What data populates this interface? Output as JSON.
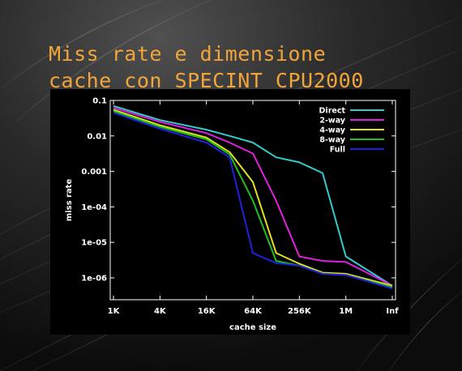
{
  "slide": {
    "title_line1": "Miss rate e dimensione",
    "title_line2": "cache con SPECINT CPU2000",
    "title_color": "#f2a53a",
    "background_color": "#000000"
  },
  "chart_data": {
    "type": "line",
    "xlabel": "cache size",
    "ylabel": "miss rate",
    "x_ticks": [
      "1K",
      "4K",
      "16K",
      "64K",
      "256K",
      "1M",
      "Inf"
    ],
    "y_ticks": [
      "0.1",
      "0.01",
      "0.001",
      "1e-04",
      "1e-05",
      "1e-06"
    ],
    "y_scale": "log",
    "ylim": [
      1e-06,
      0.1
    ],
    "grid": false,
    "legend_position": "top-right",
    "series": [
      {
        "name": "Direct",
        "color": "#33cccc",
        "x": [
          "1K",
          "4K",
          "16K",
          "32K",
          "64K",
          "128K",
          "256K",
          "512K",
          "1M",
          "Inf"
        ],
        "y": [
          0.07,
          0.028,
          0.015,
          0.01,
          0.0065,
          0.0025,
          0.0018,
          0.0009,
          4e-06,
          6e-07
        ]
      },
      {
        "name": "2-way",
        "color": "#e020e0",
        "x": [
          "1K",
          "4K",
          "16K",
          "32K",
          "64K",
          "128K",
          "256K",
          "512K",
          "1M",
          "Inf"
        ],
        "y": [
          0.062,
          0.025,
          0.012,
          0.0065,
          0.0032,
          0.00015,
          4e-06,
          3e-06,
          2.8e-06,
          6e-07
        ]
      },
      {
        "name": "4-way",
        "color": "#e0e020",
        "x": [
          "1K",
          "4K",
          "16K",
          "32K",
          "64K",
          "128K",
          "256K",
          "512K",
          "1M",
          "Inf"
        ],
        "y": [
          0.055,
          0.02,
          0.009,
          0.0035,
          0.0005,
          5e-06,
          2.5e-06,
          1.4e-06,
          1.3e-06,
          6e-07
        ]
      },
      {
        "name": "8-way",
        "color": "#20c020",
        "x": [
          "1K",
          "4K",
          "16K",
          "32K",
          "64K",
          "128K",
          "256K",
          "512K",
          "1M",
          "Inf"
        ],
        "y": [
          0.05,
          0.018,
          0.008,
          0.003,
          0.00015,
          3e-06,
          2.2e-06,
          1.3e-06,
          1.2e-06,
          5.5e-07
        ]
      },
      {
        "name": "Full",
        "color": "#2020e0",
        "x": [
          "1K",
          "4K",
          "16K",
          "32K",
          "64K",
          "128K",
          "256K",
          "512K",
          "1M",
          "Inf"
        ],
        "y": [
          0.045,
          0.016,
          0.0065,
          0.0025,
          5e-06,
          2.6e-06,
          2.2e-06,
          1.3e-06,
          1.2e-06,
          5e-07
        ]
      }
    ]
  }
}
